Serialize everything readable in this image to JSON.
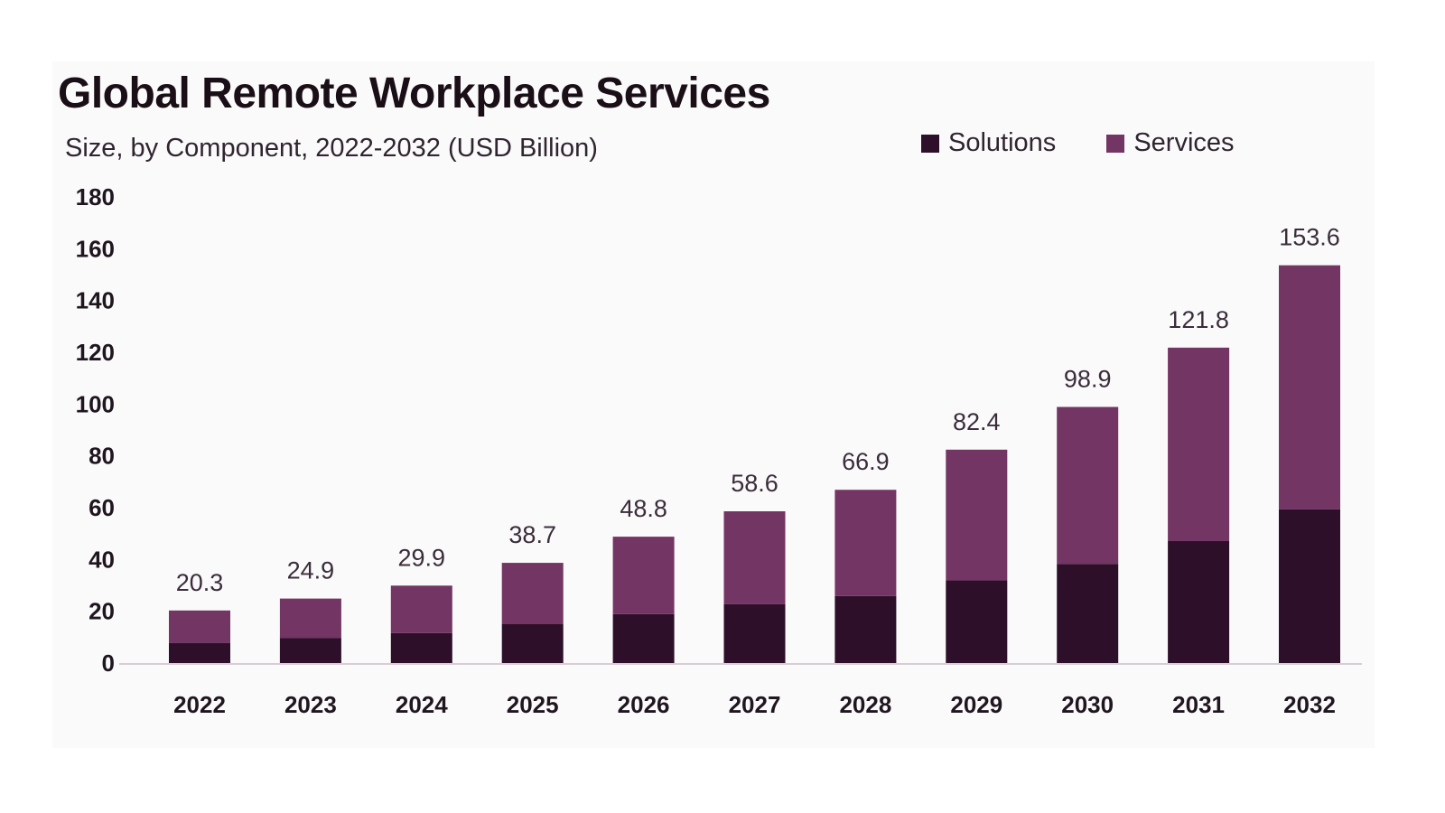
{
  "title": "Global Remote Workplace Services",
  "subtitle": "Size, by Component, 2022-2032 (USD Billion)",
  "colors": {
    "solutions": "#2e0f2a",
    "services": "#733563",
    "axis": "#d8ccd5"
  },
  "legend": [
    {
      "name": "Solutions",
      "color": "#2e0f2a"
    },
    {
      "name": "Services",
      "color": "#733563"
    }
  ],
  "chart_data": {
    "type": "bar",
    "stacked": true,
    "title": "Global Remote Workplace Services",
    "subtitle": "Size, by Component, 2022-2032 (USD Billion)",
    "categories": [
      "2022",
      "2023",
      "2024",
      "2025",
      "2026",
      "2027",
      "2028",
      "2029",
      "2030",
      "2031",
      "2032"
    ],
    "series": [
      {
        "name": "Solutions",
        "values": [
          7.8,
          9.6,
          11.6,
          15.0,
          18.9,
          22.7,
          25.9,
          31.9,
          38.3,
          47.1,
          59.4
        ]
      },
      {
        "name": "Services",
        "values": [
          12.5,
          15.3,
          18.3,
          23.7,
          29.9,
          35.9,
          41.0,
          50.5,
          60.6,
          74.7,
          94.2
        ]
      }
    ],
    "totals": [
      "20.3",
      "24.9",
      "29.9",
      "38.7",
      "48.8",
      "58.6",
      "66.9",
      "82.4",
      "98.9",
      "121.8",
      "153.6"
    ],
    "y_ticks": [
      "0",
      "20",
      "40",
      "60",
      "80",
      "100",
      "120",
      "140",
      "160",
      "180"
    ],
    "ylim": [
      0,
      180
    ],
    "grid": false,
    "legend_position": "top-right"
  }
}
